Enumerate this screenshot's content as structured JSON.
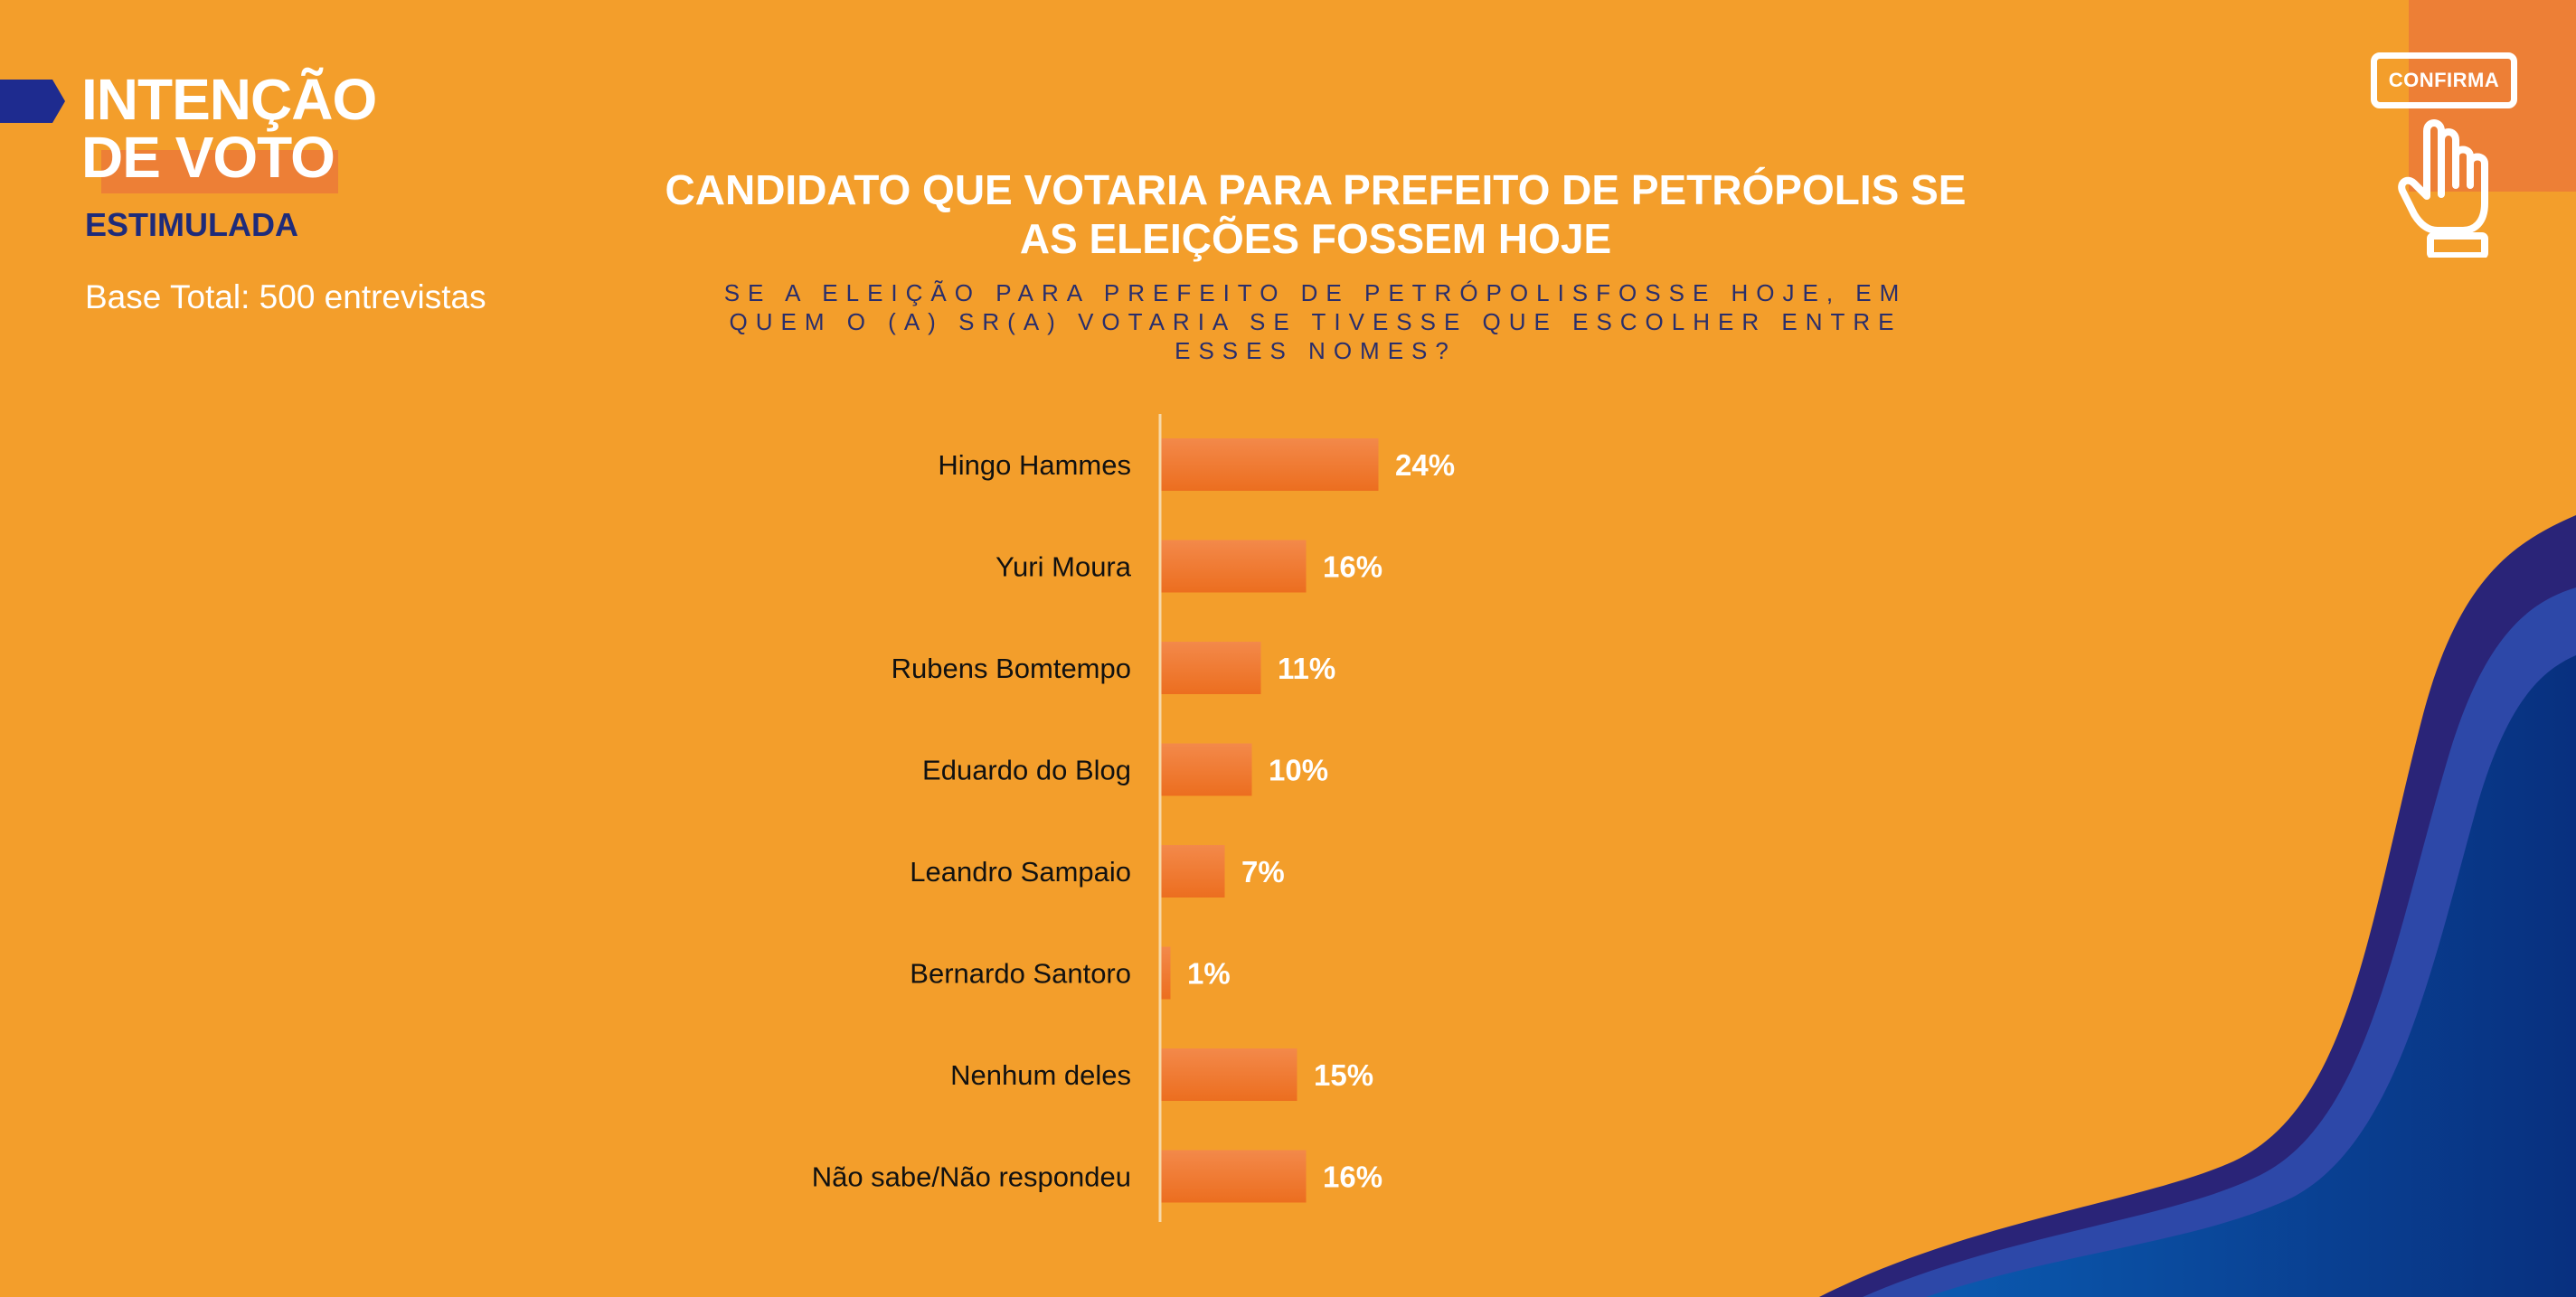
{
  "header": {
    "title_line1": "INTENÇÃO",
    "title_line2": "DE VOTO",
    "subtitle": "ESTIMULADA",
    "base": "Base Total: 500 entrevistas"
  },
  "logo": {
    "label": "CONFIRMA",
    "icon": "hand-pointer-icon"
  },
  "colors": {
    "background": "#F39E2B",
    "bar": "#EE7A2F",
    "accent_orange": "#ED7F36",
    "navy": "#1E2B7A",
    "wave_dark": "#2A2478",
    "wave_mid": "#2D48A8",
    "wave_front": "#0A3E9C"
  },
  "chart_data": {
    "type": "bar",
    "orientation": "horizontal",
    "title": "CANDIDATO QUE VOTARIA PARA PREFEITO DE PETRÓPOLIS SE AS ELEIÇÕES FOSSEM HOJE",
    "subtitle": "SE A ELEIÇÃO PARA PREFEITO DE PETRÓPOLISFOSSE HOJE, EM QUEM O (A) SR(A) VOTARIA SE TIVESSE QUE ESCOLHER ENTRE ESSES NOMES?",
    "categories": [
      "Hingo Hammes",
      "Yuri Moura",
      "Rubens Bomtempo",
      "Eduardo do Blog",
      "Leandro Sampaio",
      "Bernardo Santoro",
      "Nenhum deles",
      "Não sabe/Não respondeu"
    ],
    "values": [
      24,
      16,
      11,
      10,
      7,
      1,
      15,
      16
    ],
    "value_labels": [
      "24%",
      "16%",
      "11%",
      "10%",
      "7%",
      "1%",
      "15%",
      "16%"
    ],
    "unit": "%",
    "xlim": [
      0,
      100
    ],
    "grid": false,
    "legend": "none"
  }
}
